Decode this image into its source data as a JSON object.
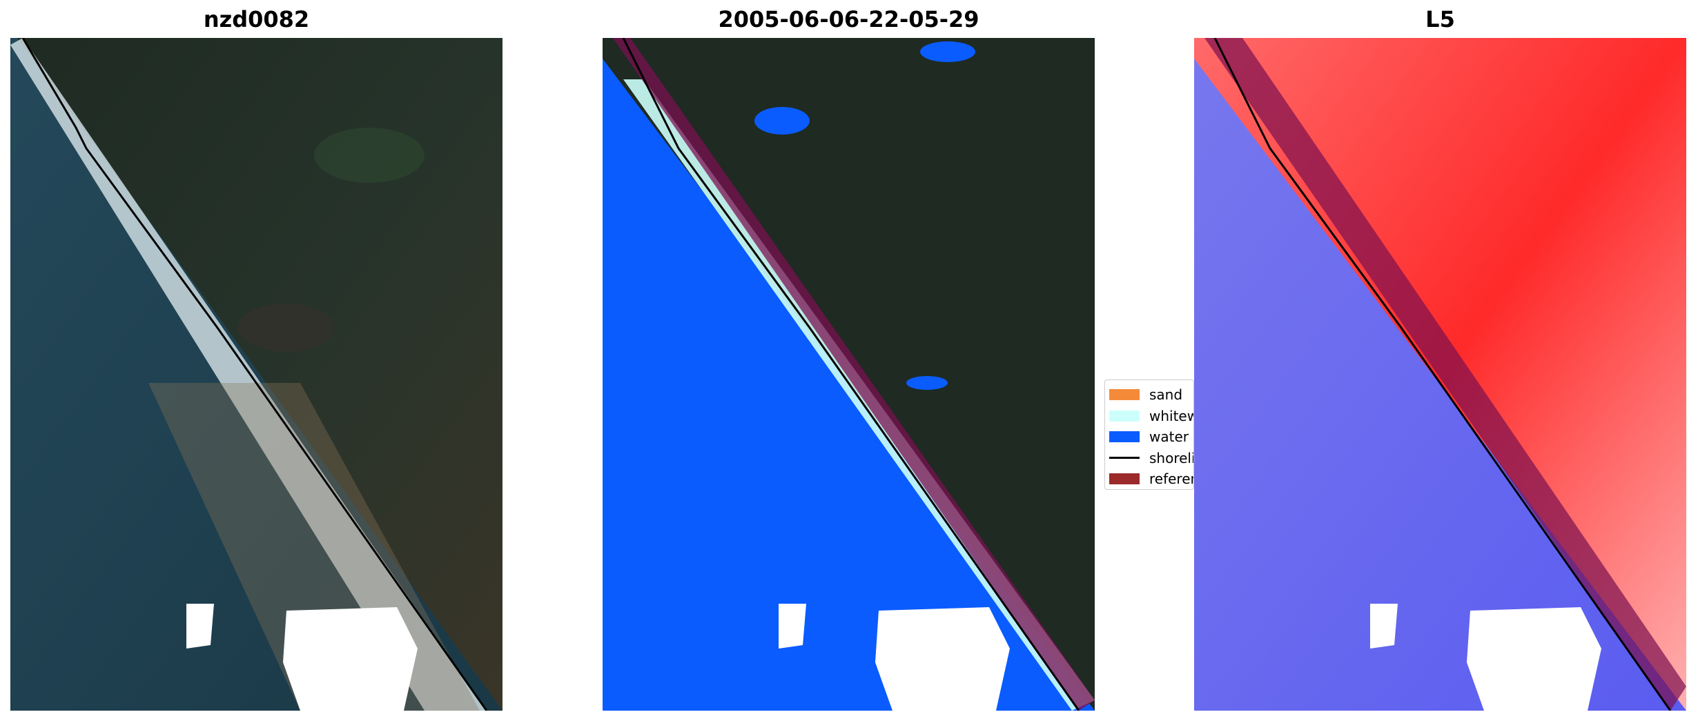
{
  "panels": [
    {
      "title": "nzd0082"
    },
    {
      "title": "2005-06-06-22-05-29"
    },
    {
      "title": "L5"
    }
  ],
  "legend": {
    "entries": [
      {
        "label": "sand",
        "color": "#f58a3a"
      },
      {
        "label": "whitewater",
        "color": "#ccfffb"
      },
      {
        "label": "water",
        "color": "#0a5cff"
      },
      {
        "label": "shoreline",
        "color": "#000000"
      },
      {
        "label": "reference shoreline buffer",
        "color": "#9c2a2a"
      }
    ]
  },
  "colors": {
    "land_dark": "#1d2a22",
    "sea_dark": "#1f4050",
    "surf": "#e2edf0",
    "water_class": "#0a5cff",
    "index_red": "#ff2a2a",
    "index_blue": "#5a5cf0",
    "buffer": "#7a1050",
    "cloud": "#ffffff"
  }
}
